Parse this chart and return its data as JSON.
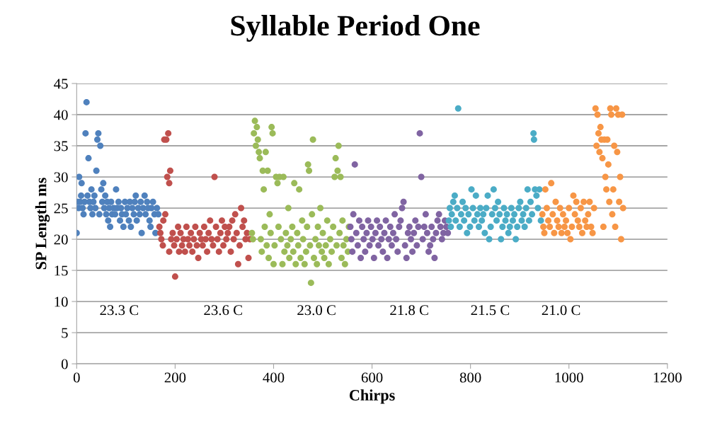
{
  "chart_data": {
    "type": "scatter",
    "title": "Syllable Period One",
    "xlabel": "Chirps",
    "ylabel": "SP Length ms",
    "xlim": [
      0,
      1200
    ],
    "xticks": [
      0,
      200,
      400,
      600,
      800,
      1000,
      1200
    ],
    "ylim": [
      0,
      45
    ],
    "yticks": [
      0,
      5,
      10,
      15,
      20,
      25,
      30,
      35,
      40,
      45
    ],
    "grid": "y",
    "legend": false,
    "marker": "circle",
    "annotations": [
      "23.3 C",
      "23.6 C",
      "23.0 C",
      "21.8 C",
      "21.5 C",
      "21.0 C"
    ],
    "series": [
      {
        "color": "#4f81bd",
        "x": [
          0,
          2,
          4,
          5,
          7,
          9,
          10,
          12,
          14,
          16,
          18,
          20,
          22,
          24,
          26,
          28,
          30,
          32,
          34,
          36,
          38,
          40,
          42,
          44,
          46,
          48,
          50,
          52,
          54,
          56,
          58,
          60,
          62,
          64,
          66,
          68,
          70,
          72,
          75,
          78,
          80,
          82,
          85,
          88,
          90,
          92,
          95,
          98,
          100,
          103,
          106,
          108,
          110,
          113,
          116,
          118,
          120,
          122,
          125,
          128,
          130,
          132,
          135,
          138,
          140,
          143,
          145,
          148,
          150,
          152,
          155,
          158,
          160,
          163,
          166
        ],
        "values": [
          21,
          26,
          25,
          30,
          26,
          27,
          29,
          25,
          24,
          26,
          37,
          42,
          27,
          33,
          26,
          25,
          28,
          24,
          26,
          27,
          25,
          31,
          36,
          37,
          24,
          35,
          28,
          26,
          29,
          25,
          27,
          24,
          26,
          23,
          25,
          22,
          26,
          24,
          25,
          24,
          28,
          25,
          26,
          23,
          25,
          24,
          22,
          26,
          24,
          25,
          23,
          26,
          22,
          25,
          24,
          26,
          27,
          23,
          25,
          24,
          26,
          21,
          25,
          27,
          24,
          26,
          25,
          23,
          22,
          25,
          26,
          24,
          21,
          25,
          24
        ]
      },
      {
        "color": "#c0504d",
        "x": [
          168,
          170,
          172,
          175,
          176,
          178,
          180,
          182,
          184,
          186,
          188,
          190,
          188,
          192,
          195,
          198,
          200,
          203,
          206,
          208,
          211,
          214,
          217,
          220,
          223,
          226,
          229,
          232,
          235,
          238,
          241,
          244,
          247,
          250,
          253,
          256,
          259,
          262,
          265,
          268,
          271,
          274,
          277,
          280,
          283,
          286,
          289,
          292,
          295,
          298,
          301,
          304,
          307,
          310,
          313,
          316,
          319,
          322,
          325,
          328,
          331,
          334,
          337,
          340,
          343,
          346,
          349,
          352
        ],
        "values": [
          22,
          21,
          20,
          19,
          23,
          36,
          24,
          36,
          30,
          37,
          29,
          31,
          18,
          20,
          21,
          19,
          14,
          20,
          22,
          18,
          21,
          19,
          20,
          18,
          22,
          20,
          19,
          21,
          18,
          20,
          22,
          19,
          17,
          21,
          20,
          19,
          22,
          20,
          18,
          21,
          23,
          20,
          19,
          30,
          22,
          20,
          18,
          21,
          23,
          19,
          22,
          20,
          21,
          22,
          18,
          23,
          20,
          24,
          21,
          16,
          19,
          25,
          22,
          23,
          20,
          21,
          17,
          20
        ]
      },
      {
        "color": "#9bbb59",
        "x": [
          356,
          358,
          360,
          362,
          364,
          366,
          368,
          370,
          372,
          374,
          376,
          378,
          380,
          382,
          384,
          386,
          388,
          390,
          392,
          394,
          396,
          398,
          400,
          402,
          405,
          408,
          410,
          412,
          415,
          418,
          420,
          422,
          425,
          428,
          430,
          432,
          435,
          438,
          440,
          442,
          445,
          448,
          450,
          452,
          455,
          458,
          460,
          463,
          466,
          468,
          470,
          472,
          474,
          476,
          478,
          480,
          482,
          485,
          488,
          490,
          492,
          495,
          498,
          500,
          503,
          506,
          509,
          512,
          515,
          518,
          521,
          524,
          526,
          528,
          530,
          532,
          534,
          536,
          538,
          540,
          542,
          545,
          548,
          551,
          553
        ],
        "values": [
          21,
          20,
          37,
          39,
          35,
          38,
          36,
          34,
          33,
          20,
          18,
          31,
          28,
          22,
          34,
          19,
          31,
          17,
          24,
          21,
          38,
          37,
          16,
          19,
          30,
          29,
          22,
          30,
          20,
          16,
          30,
          18,
          21,
          19,
          25,
          17,
          20,
          22,
          18,
          29,
          16,
          21,
          19,
          28,
          17,
          23,
          20,
          16,
          18,
          22,
          32,
          31,
          19,
          13,
          24,
          36,
          17,
          20,
          16,
          22,
          19,
          25,
          18,
          21,
          17,
          19,
          23,
          16,
          20,
          18,
          22,
          30,
          33,
          19,
          31,
          35,
          21,
          30,
          17,
          23,
          19,
          16,
          20,
          18,
          22
        ]
      },
      {
        "color": "#8064a2",
        "x": [
          556,
          558,
          560,
          562,
          565,
          568,
          571,
          574,
          577,
          580,
          583,
          586,
          589,
          592,
          595,
          598,
          601,
          604,
          607,
          610,
          613,
          616,
          619,
          622,
          625,
          628,
          631,
          634,
          637,
          640,
          643,
          646,
          649,
          652,
          655,
          658,
          661,
          664,
          667,
          670,
          673,
          676,
          679,
          682,
          685,
          688,
          691,
          694,
          697,
          700,
          703,
          706,
          709,
          712,
          715,
          718,
          721,
          724,
          727,
          730,
          733,
          736,
          739,
          742,
          745,
          748,
          751,
          754
        ],
        "values": [
          22,
          20,
          18,
          24,
          32,
          21,
          19,
          23,
          17,
          22,
          20,
          18,
          21,
          23,
          19,
          22,
          20,
          17,
          21,
          23,
          19,
          22,
          20,
          18,
          21,
          23,
          17,
          20,
          22,
          19,
          21,
          24,
          20,
          18,
          22,
          23,
          25,
          26,
          19,
          17,
          21,
          22,
          20,
          18,
          21,
          23,
          19,
          22,
          37,
          30,
          20,
          22,
          24,
          21,
          18,
          19,
          22,
          20,
          17,
          21,
          23,
          24,
          22,
          20,
          21,
          23,
          22,
          21
        ]
      },
      {
        "color": "#4bacc6",
        "x": [
          756,
          758,
          760,
          762,
          765,
          768,
          770,
          773,
          775,
          778,
          781,
          784,
          787,
          790,
          793,
          796,
          799,
          802,
          805,
          808,
          811,
          814,
          817,
          820,
          823,
          826,
          829,
          832,
          835,
          838,
          841,
          844,
          847,
          850,
          853,
          856,
          859,
          862,
          865,
          868,
          871,
          874,
          877,
          880,
          883,
          886,
          889,
          892,
          895,
          898,
          901,
          904,
          907,
          910,
          913,
          916,
          919,
          922,
          925,
          928,
          929,
          931,
          934,
          937,
          940,
          943
        ],
        "values": [
          23,
          25,
          22,
          24,
          26,
          27,
          23,
          25,
          41,
          22,
          24,
          26,
          23,
          25,
          21,
          24,
          22,
          28,
          25,
          23,
          27,
          24,
          22,
          25,
          23,
          24,
          21,
          25,
          27,
          20,
          22,
          24,
          28,
          25,
          23,
          26,
          24,
          20,
          22,
          25,
          23,
          24,
          21,
          22,
          25,
          23,
          24,
          20,
          22,
          25,
          26,
          23,
          24,
          22,
          25,
          28,
          23,
          26,
          24,
          37,
          36,
          28,
          27,
          25,
          28,
          23
        ]
      },
      {
        "color": "#f79646",
        "x": [
          946,
          948,
          950,
          952,
          955,
          958,
          961,
          964,
          967,
          970,
          973,
          976,
          979,
          982,
          985,
          988,
          991,
          994,
          997,
          1000,
          1003,
          1006,
          1009,
          1012,
          1015,
          1018,
          1021,
          1024,
          1027,
          1030,
          1033,
          1036,
          1039,
          1042,
          1045,
          1048,
          1051,
          1054,
          1056,
          1058,
          1060,
          1062,
          1064,
          1066,
          1068,
          1070,
          1072,
          1074,
          1076,
          1078,
          1080,
          1082,
          1084,
          1086,
          1088,
          1090,
          1092,
          1094,
          1096,
          1098,
          1100,
          1102,
          1104,
          1106,
          1108,
          1110
        ],
        "values": [
          24,
          22,
          21,
          28,
          25,
          23,
          22,
          29,
          24,
          21,
          26,
          23,
          22,
          25,
          21,
          24,
          22,
          23,
          21,
          25,
          20,
          22,
          27,
          24,
          26,
          23,
          22,
          25,
          21,
          26,
          23,
          22,
          24,
          26,
          22,
          21,
          25,
          41,
          35,
          40,
          37,
          34,
          38,
          36,
          33,
          22,
          36,
          30,
          28,
          36,
          32,
          26,
          41,
          40,
          24,
          28,
          35,
          22,
          41,
          34,
          40,
          26,
          30,
          20,
          40,
          25
        ]
      }
    ]
  }
}
